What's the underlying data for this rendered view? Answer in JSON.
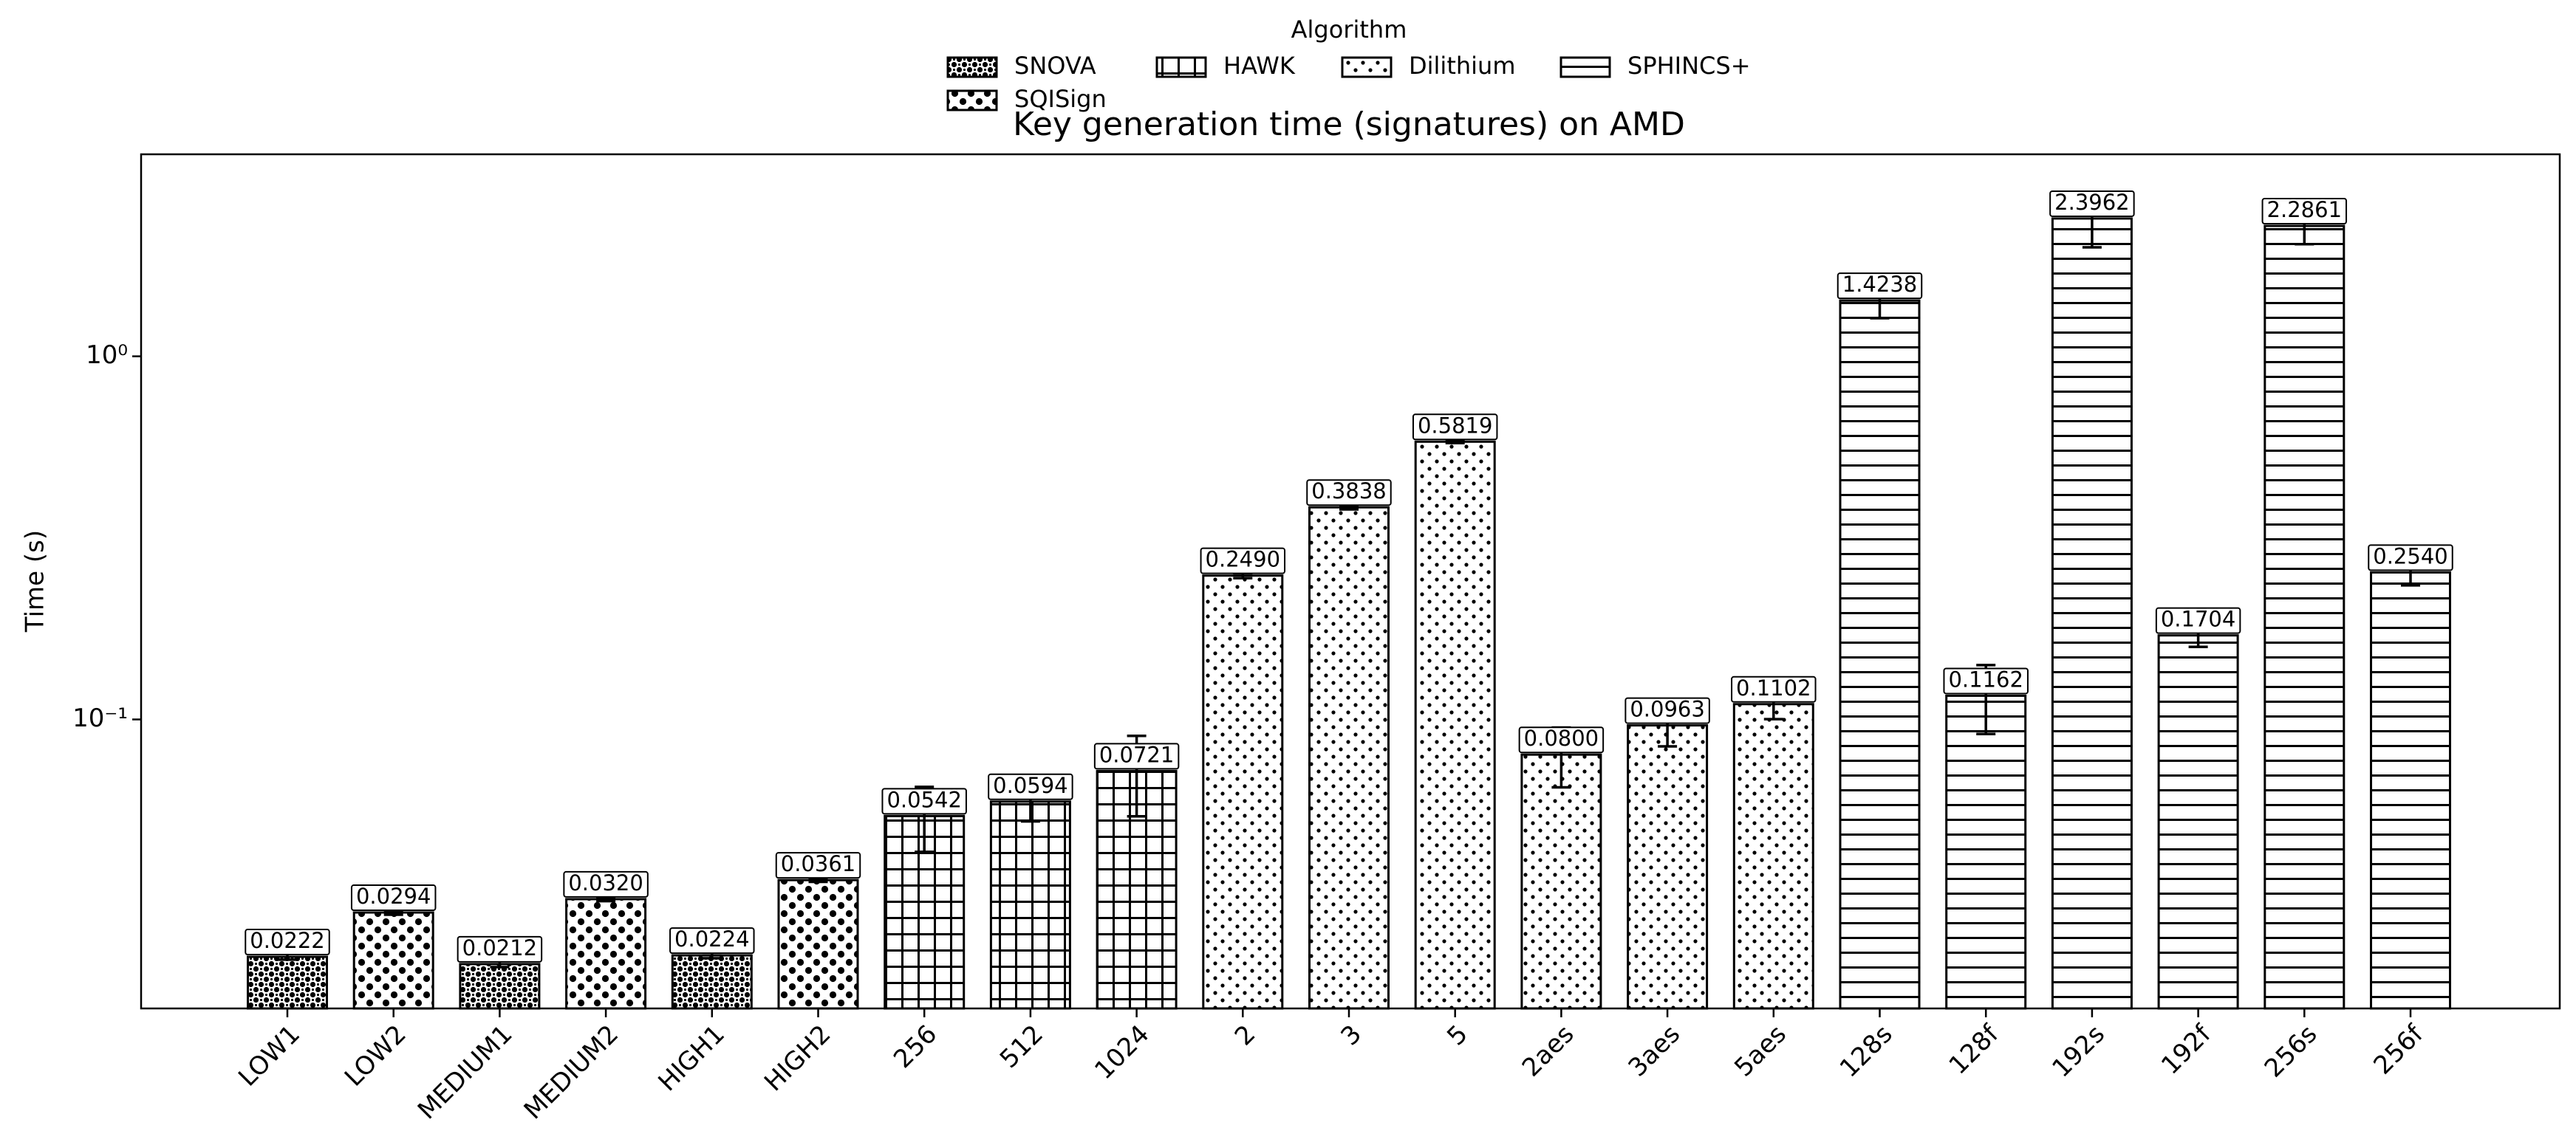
{
  "chart_data": {
    "type": "bar",
    "title": "Key generation time (signatures) on AMD",
    "y_label": "Time (s)",
    "legend_title": "Algorithm",
    "log_scale_y": true,
    "categories": [
      "LOW1",
      "LOW2",
      "MEDIUM1",
      "MEDIUM2",
      "HIGH1",
      "HIGH2",
      "256",
      "512",
      "1024",
      "2",
      "3",
      "5",
      "2aes",
      "3aes",
      "5aes",
      "128s",
      "128f",
      "192s",
      "192f",
      "256s",
      "256f"
    ],
    "ylim": [
      0.016,
      3.6
    ],
    "yticks": [
      {
        "value": 0.1,
        "label": "10⁻¹"
      },
      {
        "value": 1,
        "label": "10⁰"
      }
    ],
    "series": [
      {
        "name": "SNOVA",
        "color": "#000000",
        "hatch": "...",
        "values": [
          0.0222,
          null,
          0.0212,
          null,
          0.0224,
          null,
          null,
          null,
          null,
          null,
          null,
          null,
          null,
          null,
          null,
          null,
          null,
          null,
          null,
          null,
          null
        ],
        "errors": [
          0.0004,
          null,
          0.0004,
          null,
          0.0004,
          null,
          null,
          null,
          null,
          null,
          null,
          null,
          null,
          null,
          null,
          null,
          null,
          null,
          null,
          null,
          null
        ]
      },
      {
        "name": "SQISign",
        "color": "#000000",
        "hatch": "o",
        "values": [
          null,
          0.0294,
          null,
          0.032,
          null,
          0.0361,
          null,
          null,
          null,
          null,
          null,
          null,
          null,
          null,
          null,
          null,
          null,
          null,
          null,
          null,
          null
        ],
        "value_labels": [
          null,
          "0.0294",
          null,
          "0.0320",
          null,
          "0.0361",
          null,
          null,
          null,
          null,
          null,
          null,
          null,
          null,
          null,
          null,
          null,
          null,
          null,
          null,
          null
        ],
        "errors": [
          null,
          0.0004,
          null,
          0.0004,
          null,
          0.0004,
          null,
          null,
          null,
          null,
          null,
          null,
          null,
          null,
          null,
          null,
          null,
          null,
          null,
          null,
          null
        ]
      },
      {
        "name": "HAWK",
        "color": "#000000",
        "hatch": "+",
        "values": [
          null,
          null,
          null,
          null,
          null,
          null,
          0.0542,
          0.0594,
          0.0721,
          null,
          null,
          null,
          null,
          null,
          null,
          null,
          null,
          null,
          null,
          null,
          null
        ],
        "errors": [
          null,
          null,
          null,
          null,
          null,
          null,
          0.011,
          0.007,
          0.018,
          null,
          null,
          null,
          null,
          null,
          null,
          null,
          null,
          null,
          null,
          null,
          null
        ]
      },
      {
        "name": "Dilithium",
        "color": "#000000",
        "hatch": ".",
        "values": [
          null,
          null,
          null,
          null,
          null,
          null,
          null,
          null,
          null,
          0.249,
          0.3838,
          0.5819,
          0.08,
          0.0963,
          0.1102,
          null,
          null,
          null,
          null,
          null,
          null
        ],
        "value_labels": [
          null,
          null,
          null,
          null,
          null,
          null,
          null,
          null,
          null,
          "0.2490",
          "0.3838",
          "0.5819",
          "0.0800",
          "0.0963",
          "0.1102",
          null,
          null,
          null,
          null,
          null,
          null
        ],
        "errors": [
          null,
          null,
          null,
          null,
          null,
          null,
          null,
          null,
          null,
          0.004,
          0.005,
          0.005,
          0.015,
          0.012,
          0.01,
          null,
          null,
          null,
          null,
          null,
          null
        ]
      },
      {
        "name": "SPHINCS+",
        "color": "#000000",
        "hatch": "-",
        "values": [
          null,
          null,
          null,
          null,
          null,
          null,
          null,
          null,
          null,
          null,
          null,
          null,
          null,
          null,
          null,
          1.4238,
          0.1162,
          2.3962,
          0.1704,
          2.2861,
          0.254
        ],
        "value_labels": [
          null,
          null,
          null,
          null,
          null,
          null,
          null,
          null,
          null,
          null,
          null,
          null,
          null,
          null,
          null,
          "1.4238",
          "0.1162",
          "2.3962",
          "0.1704",
          "2.2861",
          "0.2540"
        ],
        "errors": [
          null,
          null,
          null,
          null,
          null,
          null,
          null,
          null,
          null,
          null,
          null,
          null,
          null,
          null,
          null,
          0.15,
          0.025,
          0.4,
          0.012,
          0.25,
          0.02
        ]
      }
    ]
  }
}
